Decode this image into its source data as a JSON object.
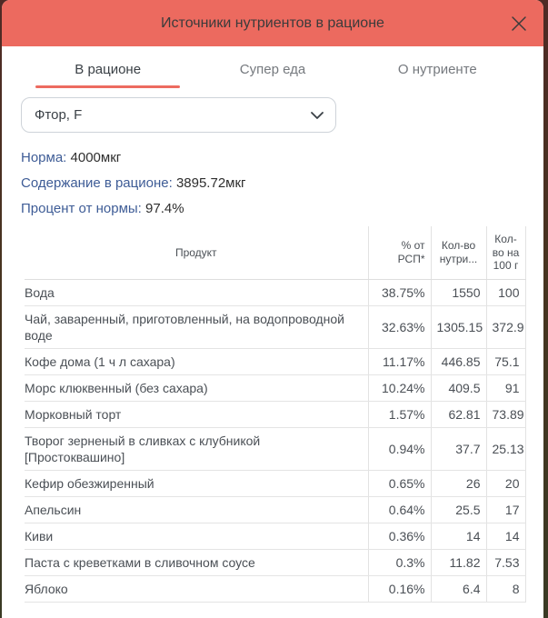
{
  "dialog": {
    "title": "Источники нутриентов в рационе",
    "accent_color": "#ec6a5f",
    "label_color": "#3e5c96"
  },
  "tabs": [
    {
      "label": "В рационе",
      "active": true
    },
    {
      "label": "Супер еда",
      "active": false
    },
    {
      "label": "О нутриенте",
      "active": false
    }
  ],
  "nutrient_select": {
    "value": "Фтор, F"
  },
  "summary": [
    {
      "label": "Норма:",
      "value": "4000мкг"
    },
    {
      "label": "Содержание в рационе:",
      "value": "3895.72мкг"
    },
    {
      "label": "Процент от нормы:",
      "value": "97.4%"
    }
  ],
  "table": {
    "headers": [
      "Продукт",
      "% от РСП*",
      "Кол-во нутри...",
      "Кол-во на 100 г"
    ],
    "rows": [
      {
        "product": "Вода",
        "pct": "38.75%",
        "amount": "1550",
        "per100": "100"
      },
      {
        "product": "Чай, заваренный, приготовленный, на водопроводной воде",
        "pct": "32.63%",
        "amount": "1305.15",
        "per100": "372.9"
      },
      {
        "product": "Кофе дома (1 ч л сахара)",
        "pct": "11.17%",
        "amount": "446.85",
        "per100": "75.1"
      },
      {
        "product": "Морс клюквенный (без сахара)",
        "pct": "10.24%",
        "amount": "409.5",
        "per100": "91"
      },
      {
        "product": "Морковный торт",
        "pct": "1.57%",
        "amount": "62.81",
        "per100": "73.89"
      },
      {
        "product": "Творог зерненый в сливках с клубникой [Простоквашино]",
        "pct": "0.94%",
        "amount": "37.7",
        "per100": "25.13"
      },
      {
        "product": "Кефир обезжиренный",
        "pct": "0.65%",
        "amount": "26",
        "per100": "20"
      },
      {
        "product": "Апельсин",
        "pct": "0.64%",
        "amount": "25.5",
        "per100": "17"
      },
      {
        "product": "Киви",
        "pct": "0.36%",
        "amount": "14",
        "per100": "14"
      },
      {
        "product": "Паста с креветками в сливочном соусе",
        "pct": "0.3%",
        "amount": "11.82",
        "per100": "7.53"
      },
      {
        "product": "Яблоко",
        "pct": "0.16%",
        "amount": "6.4",
        "per100": "8"
      }
    ]
  }
}
